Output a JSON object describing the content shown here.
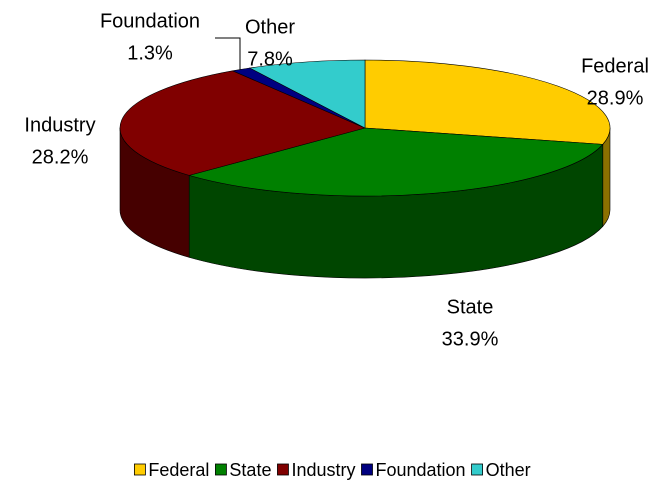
{
  "chart_data": {
    "type": "pie",
    "categories": [
      "Federal",
      "State",
      "Industry",
      "Foundation",
      "Other"
    ],
    "values": [
      28.9,
      33.9,
      28.2,
      1.3,
      7.8
    ],
    "value_labels": [
      "28.9%",
      "33.9%",
      "28.2%",
      "1.3%",
      "7.8%"
    ],
    "colors": [
      "#ffcc00",
      "#008000",
      "#800000",
      "#000080",
      "#33cccc"
    ],
    "legend": "bottom"
  }
}
